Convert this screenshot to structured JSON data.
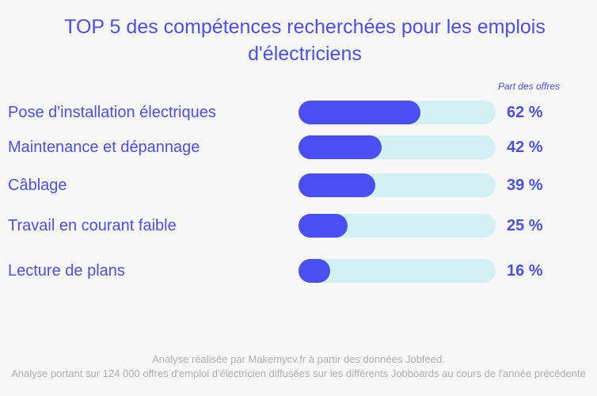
{
  "title": "TOP 5 des compétences recherchées pour les emplois d'électriciens",
  "column_header": "Part des offres",
  "chart_data": {
    "type": "bar",
    "orientation": "horizontal",
    "title": "TOP 5 des compétences recherchées pour les emplois d'électriciens",
    "value_label": "Part des offres",
    "unit": "%",
    "xlim": [
      0,
      100
    ],
    "categories": [
      "Pose d'installation électriques",
      "Maintenance et dépannage",
      "Câblage",
      "Travail en courant faible",
      "Lecture de plans"
    ],
    "values": [
      62,
      42,
      39,
      25,
      16
    ],
    "value_labels": [
      "62 %",
      "42 %",
      "39 %",
      "25 %",
      "16 %"
    ],
    "colors": {
      "bar": "#4b4ef2",
      "track": "#d3f1f4",
      "text": "#4b4ef2",
      "background": "#f7f7f7"
    }
  },
  "footer": {
    "line1": "Analyse réalisée par Makemycv.fr à partir des données Jobfeed.",
    "line2": "Analyse portant sur 124 000 offres d'emploi d'électricien diffusées sur les différents Jobboards au cours de l'année précédente"
  }
}
